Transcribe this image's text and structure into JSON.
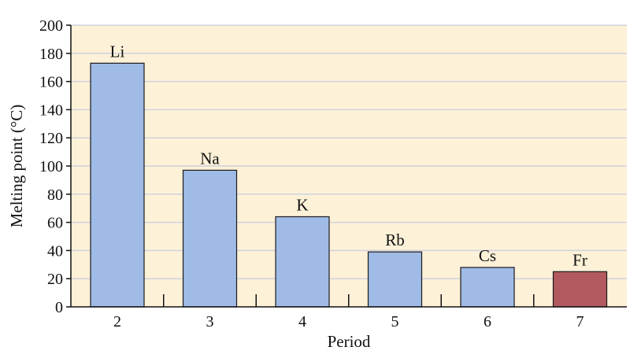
{
  "chart_data": {
    "type": "bar",
    "categories": [
      "2",
      "3",
      "4",
      "5",
      "6",
      "7"
    ],
    "elements": [
      "Li",
      "Na",
      "K",
      "Rb",
      "Cs",
      "Fr"
    ],
    "values": [
      173,
      97,
      64,
      39,
      28,
      25
    ],
    "xlabel": "Period",
    "ylabel": "Melting point (°C)",
    "ylim": [
      0,
      200
    ],
    "yticks": [
      "0",
      "20",
      "40",
      "60",
      "80",
      "100",
      "120",
      "140",
      "160",
      "180",
      "200"
    ],
    "grid": true,
    "colors": {
      "plot_background": "#fdf1d8",
      "grid": "#cfd3dc",
      "bar": "#9fbbe6",
      "highlight_bar": "#b25a5f",
      "bar_edge": "#1a1a1a"
    },
    "highlight_index": 5
  }
}
